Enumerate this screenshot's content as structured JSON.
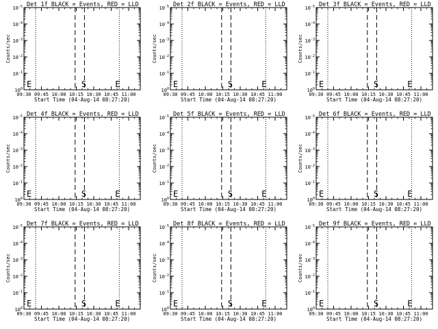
{
  "chart_data": [
    {
      "type": "line",
      "title": "Det 1f BLACK = Events, RED = LLD",
      "ylabel": "Counts/sec",
      "xlabel": "Start Time (04-Aug-14 08:27:20)",
      "yscale": "log",
      "ylim_exponents": [
        0,
        -5
      ],
      "y_tick_exponents": [
        0,
        -1,
        -2,
        -3,
        -4,
        -5
      ],
      "x_tick_labels": [
        "09:30",
        "09:45",
        "10:00",
        "10:15",
        "10:30",
        "10:45",
        "11:00"
      ],
      "dotted_lines": [
        "09:40",
        "10:52"
      ],
      "dashed_lines": [
        "10:14",
        "10:22"
      ],
      "markers": [
        {
          "text": "E",
          "at": "09:30"
        },
        {
          "text": "S",
          "at": "10:17"
        },
        {
          "text": "E",
          "at": "10:46"
        }
      ],
      "series": []
    },
    {
      "type": "line",
      "title": "Det 2f BLACK = Events, RED = LLD",
      "ylabel": "Counts/sec",
      "xlabel": "Start Time (04-Aug-14 08:27:20)",
      "yscale": "log",
      "ylim_exponents": [
        0,
        -5
      ],
      "y_tick_exponents": [
        0,
        -1,
        -2,
        -3,
        -4,
        -5
      ],
      "x_tick_labels": [
        "09:30",
        "09:45",
        "10:00",
        "10:15",
        "10:30",
        "10:45",
        "11:00"
      ],
      "dotted_lines": [
        "09:40",
        "10:52"
      ],
      "dashed_lines": [
        "10:14",
        "10:22"
      ],
      "markers": [
        {
          "text": "E",
          "at": "09:30"
        },
        {
          "text": "S",
          "at": "10:17"
        },
        {
          "text": "E",
          "at": "10:46"
        }
      ],
      "series": []
    },
    {
      "type": "line",
      "title": "Det 3f BLACK = Events, RED = LLD",
      "ylabel": "Counts/sec",
      "xlabel": "Start Time (04-Aug-14 08:27:20)",
      "yscale": "log",
      "ylim_exponents": [
        0,
        -5
      ],
      "y_tick_exponents": [
        0,
        -1,
        -2,
        -3,
        -4,
        -5
      ],
      "x_tick_labels": [
        "09:30",
        "09:45",
        "10:00",
        "10:15",
        "10:30",
        "10:45",
        "11:00"
      ],
      "dotted_lines": [
        "09:40",
        "10:52"
      ],
      "dashed_lines": [
        "10:14",
        "10:22"
      ],
      "markers": [
        {
          "text": "E",
          "at": "09:30"
        },
        {
          "text": "S",
          "at": "10:17"
        },
        {
          "text": "E",
          "at": "10:46"
        }
      ],
      "series": []
    },
    {
      "type": "line",
      "title": "Det 4f BLACK = Events, RED = LLD",
      "ylabel": "Counts/sec",
      "xlabel": "Start Time (04-Aug-14 08:27:20)",
      "yscale": "log",
      "ylim_exponents": [
        0,
        -5
      ],
      "y_tick_exponents": [
        0,
        -1,
        -2,
        -3,
        -4,
        -5
      ],
      "x_tick_labels": [
        "09:30",
        "09:45",
        "10:00",
        "10:15",
        "10:30",
        "10:45",
        "11:00"
      ],
      "dotted_lines": [
        "09:40",
        "10:52"
      ],
      "dashed_lines": [
        "10:14",
        "10:22"
      ],
      "markers": [
        {
          "text": "E",
          "at": "09:30"
        },
        {
          "text": "S",
          "at": "10:17"
        },
        {
          "text": "E",
          "at": "10:46"
        }
      ],
      "series": []
    },
    {
      "type": "line",
      "title": "Det 5f BLACK = Events, RED = LLD",
      "ylabel": "Counts/sec",
      "xlabel": "Start Time (04-Aug-14 08:27:20)",
      "yscale": "log",
      "ylim_exponents": [
        0,
        -5
      ],
      "y_tick_exponents": [
        0,
        -1,
        -2,
        -3,
        -4,
        -5
      ],
      "x_tick_labels": [
        "09:30",
        "09:45",
        "10:00",
        "10:15",
        "10:30",
        "10:45",
        "11:00"
      ],
      "dotted_lines": [
        "09:40",
        "10:52"
      ],
      "dashed_lines": [
        "10:14",
        "10:22"
      ],
      "markers": [
        {
          "text": "E",
          "at": "09:30"
        },
        {
          "text": "S",
          "at": "10:17"
        },
        {
          "text": "E",
          "at": "10:46"
        }
      ],
      "series": []
    },
    {
      "type": "line",
      "title": "Det 6f BLACK = Events, RED = LLD",
      "ylabel": "Counts/sec",
      "xlabel": "Start Time (04-Aug-14 08:27:20)",
      "yscale": "log",
      "ylim_exponents": [
        0,
        -5
      ],
      "y_tick_exponents": [
        0,
        -1,
        -2,
        -3,
        -4,
        -5
      ],
      "x_tick_labels": [
        "09:30",
        "09:45",
        "10:00",
        "10:15",
        "10:30",
        "10:45",
        "11:00"
      ],
      "dotted_lines": [
        "09:40",
        "10:52"
      ],
      "dashed_lines": [
        "10:14",
        "10:22"
      ],
      "markers": [
        {
          "text": "E",
          "at": "09:30"
        },
        {
          "text": "S",
          "at": "10:17"
        },
        {
          "text": "E",
          "at": "10:46"
        }
      ],
      "series": []
    },
    {
      "type": "line",
      "title": "Det 7f BLACK = Events, RED = LLD",
      "ylabel": "Counts/sec",
      "xlabel": "Start Time (04-Aug-14 08:27:20)",
      "yscale": "log",
      "ylim_exponents": [
        0,
        -5
      ],
      "y_tick_exponents": [
        0,
        -1,
        -2,
        -3,
        -4,
        -5
      ],
      "x_tick_labels": [
        "09:30",
        "09:45",
        "10:00",
        "10:15",
        "10:30",
        "10:45",
        "11:00"
      ],
      "dotted_lines": [
        "09:40",
        "10:52"
      ],
      "dashed_lines": [
        "10:14",
        "10:22"
      ],
      "markers": [
        {
          "text": "E",
          "at": "09:30"
        },
        {
          "text": "S",
          "at": "10:17"
        },
        {
          "text": "E",
          "at": "10:46"
        }
      ],
      "series": []
    },
    {
      "type": "line",
      "title": "Det 8f BLACK = Events, RED = LLD",
      "ylabel": "Counts/sec",
      "xlabel": "Start Time (04-Aug-14 08:27:20)",
      "yscale": "log",
      "ylim_exponents": [
        0,
        -5
      ],
      "y_tick_exponents": [
        0,
        -1,
        -2,
        -3,
        -4,
        -5
      ],
      "x_tick_labels": [
        "09:30",
        "09:45",
        "10:00",
        "10:15",
        "10:30",
        "10:45",
        "11:00"
      ],
      "dotted_lines": [
        "09:40",
        "10:52"
      ],
      "dashed_lines": [
        "10:14",
        "10:22"
      ],
      "markers": [
        {
          "text": "E",
          "at": "09:30"
        },
        {
          "text": "S",
          "at": "10:17"
        },
        {
          "text": "E",
          "at": "10:46"
        }
      ],
      "series": []
    },
    {
      "type": "line",
      "title": "Det 9f BLACK = Events, RED = LLD",
      "ylabel": "Counts/sec",
      "xlabel": "Start Time (04-Aug-14 08:27:20)",
      "yscale": "log",
      "ylim_exponents": [
        0,
        -5
      ],
      "y_tick_exponents": [
        0,
        -1,
        -2,
        -3,
        -4,
        -5
      ],
      "x_tick_labels": [
        "09:30",
        "09:45",
        "10:00",
        "10:15",
        "10:30",
        "10:45",
        "11:00"
      ],
      "dotted_lines": [
        "09:40",
        "10:52"
      ],
      "dashed_lines": [
        "10:14",
        "10:22"
      ],
      "markers": [
        {
          "text": "E",
          "at": "09:30"
        },
        {
          "text": "S",
          "at": "10:17"
        },
        {
          "text": "E",
          "at": "10:46"
        }
      ],
      "series": []
    }
  ]
}
